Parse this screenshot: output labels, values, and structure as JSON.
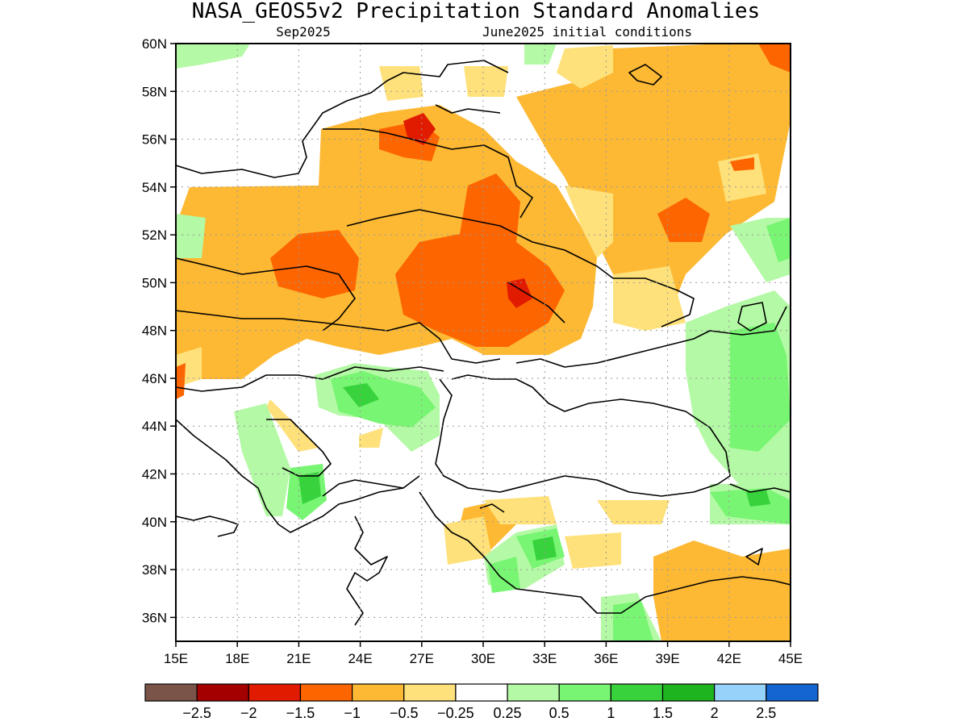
{
  "title": "NASA_GEOS5v2 Precipitation Standard Anomalies",
  "subtitle_left": "Sep2025",
  "subtitle_right": "June2025 initial conditions",
  "map": {
    "lon_range": [
      15,
      45
    ],
    "lat_range": [
      35,
      60
    ],
    "lon_ticks": [
      "15E",
      "18E",
      "21E",
      "24E",
      "27E",
      "30E",
      "33E",
      "36E",
      "39E",
      "42E",
      "45E"
    ],
    "lat_ticks": [
      "60N",
      "58N",
      "56N",
      "54N",
      "52N",
      "50N",
      "48N",
      "46N",
      "44N",
      "42N",
      "40N",
      "38N",
      "36N"
    ],
    "grid": "dotted"
  },
  "colorbar": {
    "colors": [
      "#7b5449",
      "#a50000",
      "#e11b00",
      "#fd6500",
      "#fdb934",
      "#fee17a",
      "#ffffff",
      "#b4f9a5",
      "#78f572",
      "#37d23c",
      "#1eb41e",
      "#96d2fa",
      "#1464d2"
    ],
    "labels": [
      "−2.5",
      "−2",
      "−1.5",
      "−1",
      "−0.5",
      "−0.25",
      "0.25",
      "0.5",
      "1",
      "1.5",
      "2",
      "2.5"
    ]
  }
}
